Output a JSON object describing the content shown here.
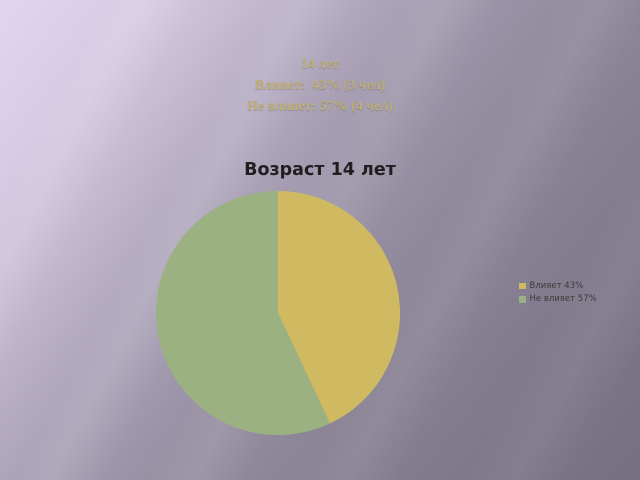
{
  "slide": {
    "header": {
      "line1": "14 лет",
      "line2": "Влияет:  43% (3 чел)",
      "line3": "Не влияет: 57% (4 чел)",
      "text_color": "#bfae74"
    }
  },
  "background": {
    "gradient_from": "#e1d6ef",
    "gradient_to": "#756f7f"
  },
  "chart_data": {
    "type": "pie",
    "title": "Возраст 14 лет",
    "title_color": "#1f1f1f",
    "labels": [
      "Влияет 43%",
      "Не влияет 57%"
    ],
    "values": [
      43,
      57
    ],
    "units": "percent",
    "counts": [
      3,
      4
    ],
    "colors": [
      "#cfba62",
      "#9cb181"
    ],
    "start_angle_deg": 0,
    "direction": "clockwise",
    "legend_position": "right",
    "legend_text_color": "#3a3a3a",
    "plot_background": "transparent"
  }
}
